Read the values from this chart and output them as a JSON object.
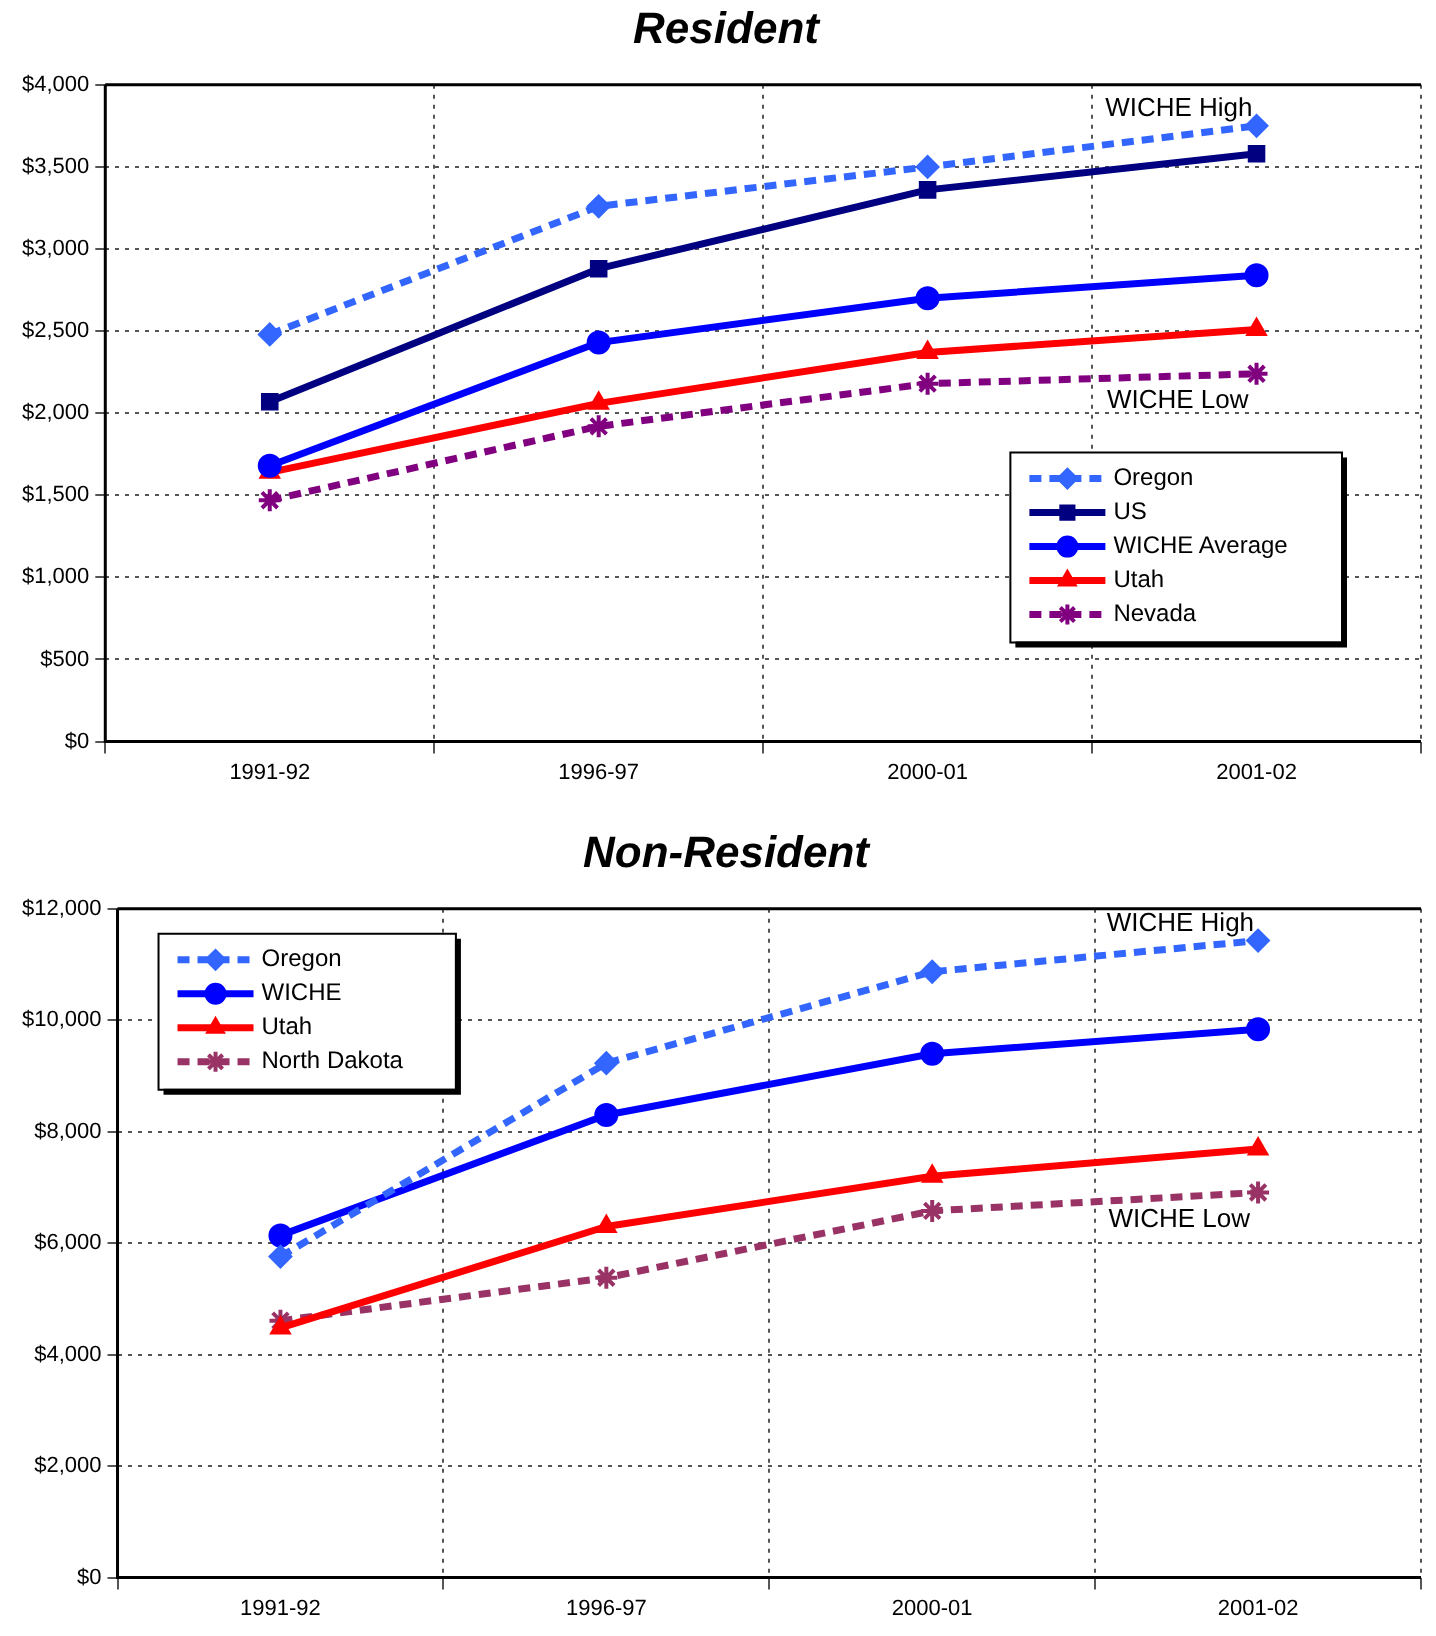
{
  "chart_data": [
    {
      "type": "line",
      "title": "Resident",
      "categories": [
        "1991-92",
        "1996-97",
        "2000-01",
        "2001-02"
      ],
      "ylim": [
        0,
        4000
      ],
      "yticks": [
        {
          "value": 0,
          "label": "$0"
        },
        {
          "value": 500,
          "label": "$500"
        },
        {
          "value": 1000,
          "label": "$1,000"
        },
        {
          "value": 1500,
          "label": "$1,500"
        },
        {
          "value": 2000,
          "label": "$2,000"
        },
        {
          "value": 2500,
          "label": "$2,500"
        },
        {
          "value": 3000,
          "label": "$3,000"
        },
        {
          "value": 3500,
          "label": "$3,500"
        },
        {
          "value": 4000,
          "label": "$4,000"
        }
      ],
      "grid": true,
      "legend": "bottom right",
      "series": [
        {
          "name": "Oregon",
          "color": "#3366ff",
          "values": [
            2480,
            3260,
            3500,
            3750
          ],
          "marker": "diamond",
          "line_style": "dashed"
        },
        {
          "name": "US",
          "color": "#000080",
          "values": [
            2070,
            2880,
            3360,
            3580
          ],
          "marker": "square",
          "line_style": "solid"
        },
        {
          "name": "WICHE Average",
          "color": "#0000ff",
          "values": [
            1680,
            2430,
            2700,
            2840
          ],
          "marker": "circle",
          "line_style": "solid"
        },
        {
          "name": "Utah",
          "color": "#ff0000",
          "values": [
            1640,
            2060,
            2370,
            2510
          ],
          "marker": "triangle",
          "line_style": "solid"
        },
        {
          "name": "Nevada",
          "color": "#800080",
          "values": [
            1470,
            1920,
            2180,
            2240
          ],
          "marker": "cross",
          "line_style": "dashed"
        }
      ],
      "annotations": [
        {
          "text": "WICHE High",
          "x": "2001-02",
          "y": 3750
        },
        {
          "text": "WICHE Low",
          "x": "2001-02",
          "y": 2240
        }
      ]
    },
    {
      "type": "line",
      "title": "Non-Resident",
      "categories": [
        "1991-92",
        "1996-97",
        "2000-01",
        "2001-02"
      ],
      "ylim": [
        0,
        12000
      ],
      "yticks": [
        {
          "value": 0,
          "label": "$0"
        },
        {
          "value": 2000,
          "label": "$2,000"
        },
        {
          "value": 4000,
          "label": "$4,000"
        },
        {
          "value": 6000,
          "label": "$6,000"
        },
        {
          "value": 8000,
          "label": "$8,000"
        },
        {
          "value": 10000,
          "label": "$10,000"
        },
        {
          "value": 12000,
          "label": "$12,000"
        }
      ],
      "grid": true,
      "legend": "top left",
      "series": [
        {
          "name": "Oregon",
          "color": "#3366ff",
          "values": [
            5760,
            9230,
            10870,
            11430
          ],
          "marker": "diamond",
          "line_style": "dashed"
        },
        {
          "name": "WICHE",
          "color": "#0000ff",
          "values": [
            6140,
            8300,
            9400,
            9840
          ],
          "marker": "circle",
          "line_style": "solid"
        },
        {
          "name": "Utah",
          "color": "#ff0000",
          "values": [
            4480,
            6300,
            7200,
            7690
          ],
          "marker": "triangle",
          "line_style": "solid"
        },
        {
          "name": "North Dakota",
          "color": "#993366",
          "values": [
            4610,
            5380,
            6580,
            6910
          ],
          "marker": "cross",
          "line_style": "dashed"
        }
      ],
      "annotations": [
        {
          "text": "WICHE High",
          "x": "2001-02",
          "y": 11430
        },
        {
          "text": "WICHE Low",
          "x": "2001-02",
          "y": 6910
        }
      ]
    }
  ]
}
